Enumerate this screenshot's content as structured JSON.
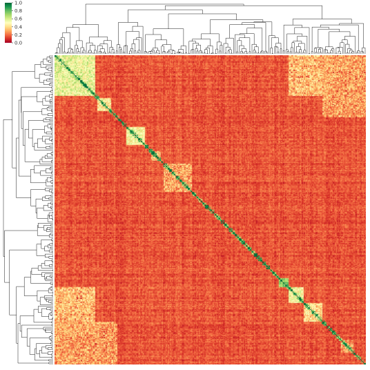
{
  "chart_data": {
    "type": "heatmap",
    "title": "",
    "xlabel": "",
    "ylabel": "",
    "matrix": "clustered correlation matrix of many samples, symmetric, diagonal = 1.0",
    "colorbar": {
      "colormap": "RdYlGn",
      "colors": [
        "#a50026",
        "#d73027",
        "#f46d43",
        "#fdae61",
        "#fee08b",
        "#ffffbf",
        "#d9ef8b",
        "#a6d96a",
        "#66bd63",
        "#1a9850",
        "#006837"
      ],
      "range": [
        0.0,
        1.0
      ],
      "ticks": [
        {
          "value": 1.0,
          "label": "1.0"
        },
        {
          "value": 0.8,
          "label": "0.8"
        },
        {
          "value": 0.6,
          "label": "0.6"
        },
        {
          "value": 0.4,
          "label": "0.4"
        },
        {
          "value": 0.2,
          "label": "0.2"
        },
        {
          "value": 0.0,
          "label": "0.0"
        }
      ]
    },
    "dendrograms": {
      "top": true,
      "left": true
    },
    "background_value": 0.1,
    "diagonal_value": 1.0,
    "blocks": [
      {
        "start": 0.0,
        "end": 0.13,
        "value": 0.55
      },
      {
        "start": 0.135,
        "end": 0.18,
        "value": 0.45
      },
      {
        "start": 0.23,
        "end": 0.29,
        "value": 0.5
      },
      {
        "start": 0.31,
        "end": 0.34,
        "value": 0.35
      },
      {
        "start": 0.35,
        "end": 0.44,
        "value": 0.3
      },
      {
        "start": 0.72,
        "end": 0.75,
        "value": 0.75
      },
      {
        "start": 0.75,
        "end": 0.8,
        "value": 0.5
      },
      {
        "start": 0.8,
        "end": 0.86,
        "value": 0.4
      },
      {
        "start": 0.92,
        "end": 0.96,
        "value": 0.3
      }
    ],
    "off_diagonal_blocks": [
      {
        "rows": [
          0.0,
          0.13
        ],
        "cols": [
          0.75,
          0.9
        ],
        "value": 0.35
      },
      {
        "rows": [
          0.75,
          0.9
        ],
        "cols": [
          0.0,
          0.13
        ],
        "value": 0.35
      },
      {
        "rows": [
          0.86,
          1.0
        ],
        "cols": [
          0.0,
          0.2
        ],
        "value": 0.3
      },
      {
        "rows": [
          0.0,
          0.2
        ],
        "cols": [
          0.86,
          1.0
        ],
        "value": 0.3
      }
    ]
  }
}
